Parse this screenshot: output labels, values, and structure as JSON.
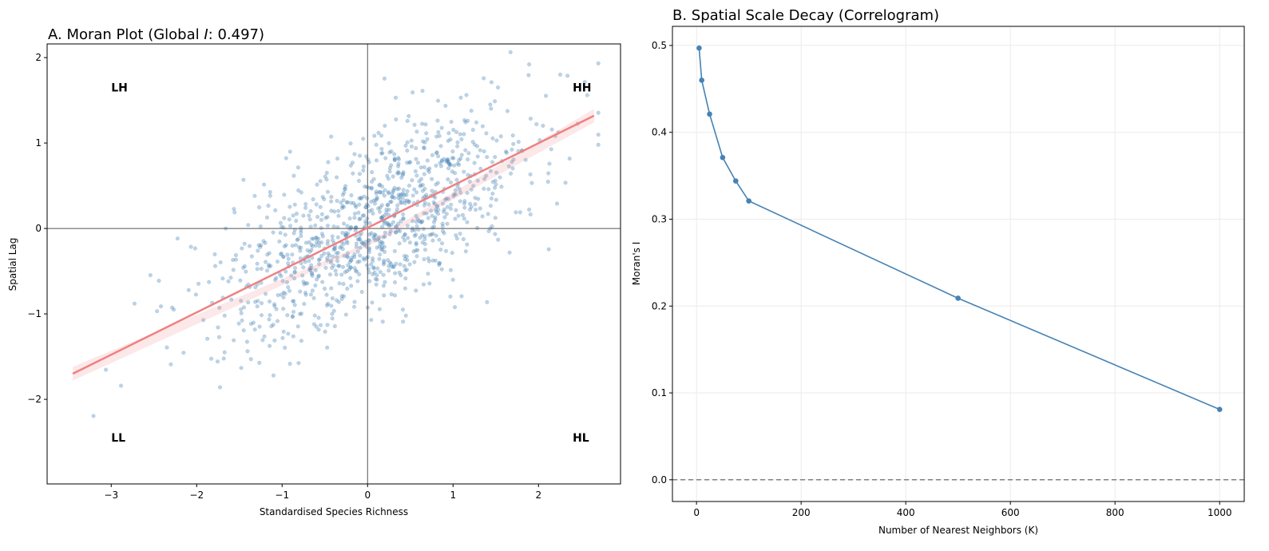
{
  "chart_data": [
    {
      "type": "scatter",
      "title": "A. Moran Plot (Global ",
      "title_italic": "I",
      "title_suffix": ": 0.497)",
      "xlabel": "Standardised Species Richness",
      "ylabel": "Spatial Lag",
      "xlim": [
        -3.75,
        2.96
      ],
      "ylim": [
        -2.99,
        2.16
      ],
      "xticks": [
        -3,
        -2,
        -1,
        0,
        1,
        2
      ],
      "yticks": [
        -2,
        -1,
        0,
        1,
        2
      ],
      "tick_labels_x": [
        "−3",
        "−2",
        "−1",
        "0",
        "1",
        "2"
      ],
      "tick_labels_y": [
        "−2",
        "−1",
        "0",
        "1",
        "2"
      ],
      "quadrant_labels": [
        {
          "text": "LH",
          "x": -3.0,
          "y": 1.65
        },
        {
          "text": "HH",
          "x": 2.4,
          "y": 1.65
        },
        {
          "text": "LL",
          "x": -3.0,
          "y": -2.45
        },
        {
          "text": "HL",
          "x": 2.4,
          "y": -2.45
        }
      ],
      "points": {
        "n": 1100,
        "x_sd": 0.95,
        "slope": 0.497,
        "noise_sd": 0.48,
        "seed": 7
      },
      "regression": {
        "x": [
          -3.45,
          2.65
        ],
        "y": [
          -1.7,
          1.32
        ],
        "ci_halfwidth": 0.08
      },
      "colors": {
        "points": "#4682b4",
        "line": "#f08080",
        "axis_lines": "#555555"
      }
    },
    {
      "type": "line",
      "title": "B. Spatial Scale Decay (Correlogram)",
      "xlabel": "Number of Nearest Neighbors (K)",
      "ylabel": "Moran's I",
      "x": [
        5,
        10,
        25,
        50,
        75,
        100,
        500,
        1000
      ],
      "y": [
        0.497,
        0.46,
        0.421,
        0.371,
        0.344,
        0.321,
        0.209,
        0.081
      ],
      "xlim": [
        -46,
        1047
      ],
      "ylim": [
        -0.025,
        0.522
      ],
      "xticks": [
        0,
        200,
        400,
        600,
        800,
        1000
      ],
      "yticks": [
        0.0,
        0.1,
        0.2,
        0.3,
        0.4,
        0.5
      ],
      "tick_labels_x": [
        "0",
        "200",
        "400",
        "600",
        "800",
        "1000"
      ],
      "tick_labels_y": [
        "0.0",
        "0.1",
        "0.2",
        "0.3",
        "0.4",
        "0.5"
      ],
      "grid": true,
      "reference_line_y": 0,
      "colors": {
        "line": "#4682b4",
        "ref": "#808080"
      }
    }
  ]
}
